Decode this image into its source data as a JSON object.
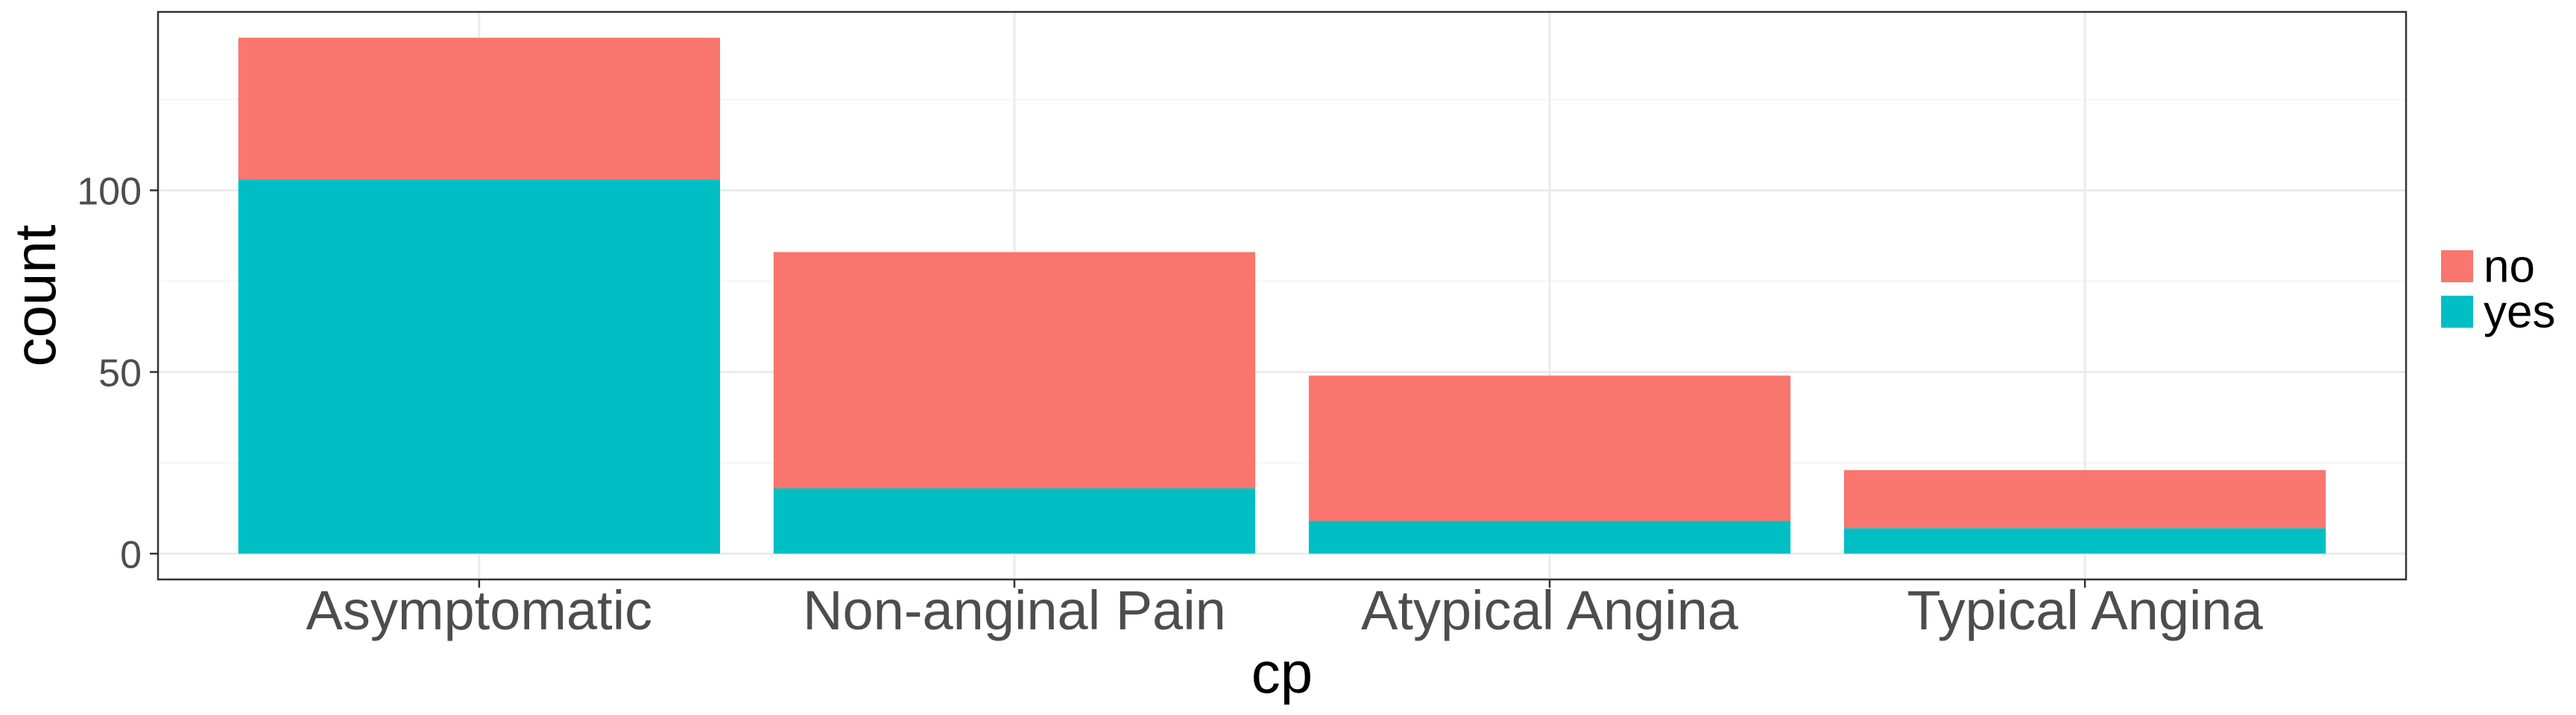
{
  "chart_data": {
    "type": "bar",
    "stacked": true,
    "categories": [
      "Asymptomatic",
      "Non-anginal Pain",
      "Atypical Angina",
      "Typical Angina"
    ],
    "series": [
      {
        "name": "no",
        "values": [
          39,
          65,
          40,
          16
        ],
        "color": "#F8766D"
      },
      {
        "name": "yes",
        "values": [
          103,
          18,
          9,
          7
        ],
        "color": "#00BFC4"
      }
    ],
    "stack_order_bottom_to_top": [
      "yes",
      "no"
    ],
    "title": "",
    "xlabel": "cp",
    "ylabel": "count",
    "ylim": [
      -7.1,
      149.1
    ],
    "yticks": [
      0,
      50,
      100
    ],
    "grid": true,
    "legend_position": "right",
    "theme": "bw",
    "colors": {
      "panel_border": "#333333",
      "grid_major": "#ebebeb",
      "grid_minor": "#f5f5f5",
      "tick_text": "#4d4d4d",
      "background": "#ffffff"
    }
  }
}
